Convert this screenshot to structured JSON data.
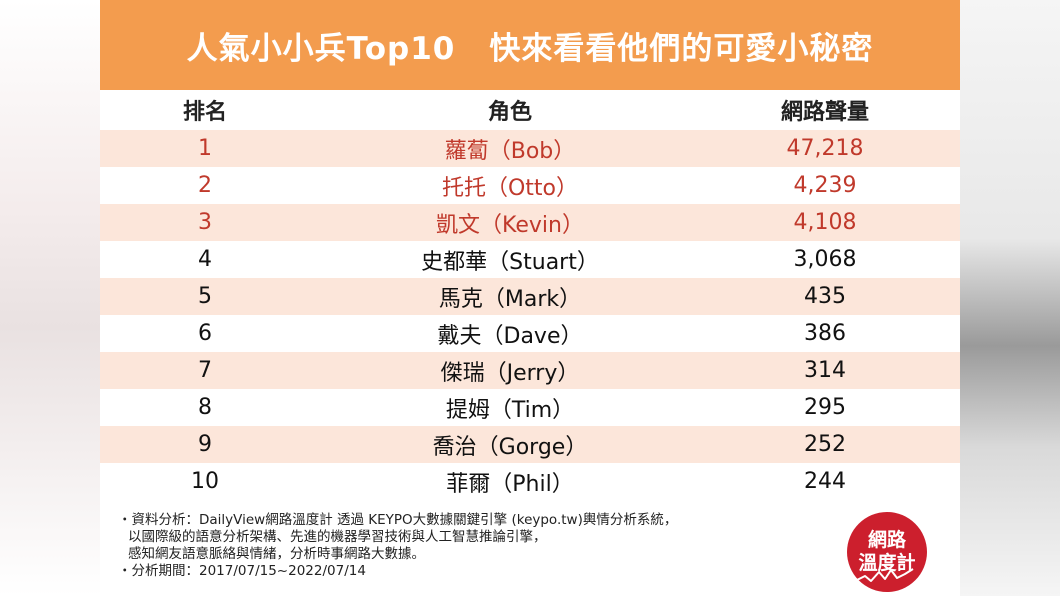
{
  "banner": {
    "title_left": "人氣小小兵Top10",
    "title_right": "快來看看他們的可愛小秘密"
  },
  "colors": {
    "banner": "#f39c4e",
    "row_alt": "#fce6da",
    "highlight_text": "#c0392b",
    "badge": "#cc1f2d"
  },
  "table": {
    "headers": [
      "排名",
      "角色",
      "網路聲量"
    ],
    "rows": [
      {
        "rank": "1",
        "name": "蘿蔔（Bob）",
        "volume": "47,218"
      },
      {
        "rank": "2",
        "name": "托托（Otto）",
        "volume": "4,239"
      },
      {
        "rank": "3",
        "name": "凱文（Kevin）",
        "volume": "4,108"
      },
      {
        "rank": "4",
        "name": "史都華（Stuart）",
        "volume": "3,068"
      },
      {
        "rank": "5",
        "name": "馬克（Mark）",
        "volume": "435"
      },
      {
        "rank": "6",
        "name": "戴夫（Dave）",
        "volume": "386"
      },
      {
        "rank": "7",
        "name": "傑瑞（Jerry）",
        "volume": "314"
      },
      {
        "rank": "8",
        "name": "提姆（Tim）",
        "volume": "295"
      },
      {
        "rank": "9",
        "name": "喬治（Gorge）",
        "volume": "252"
      },
      {
        "rank": "10",
        "name": "菲爾（Phil）",
        "volume": "244"
      }
    ]
  },
  "footnote": {
    "line1": "・資料分析：DailyView網路溫度計 透過 KEYPO大數據關鍵引擎 (keypo.tw)輿情分析系統，",
    "line2": "以國際級的語意分析架構、先進的機器學習技術與人工智慧推論引擎，",
    "line3": "感知網友語意脈絡與情緒，分析時事網路大數據。",
    "line4": "・分析期間：2017/07/15~2022/07/14"
  },
  "badge": {
    "line1": "網路",
    "line2": "溫度計",
    "icon": "thermometer-wave-icon"
  }
}
